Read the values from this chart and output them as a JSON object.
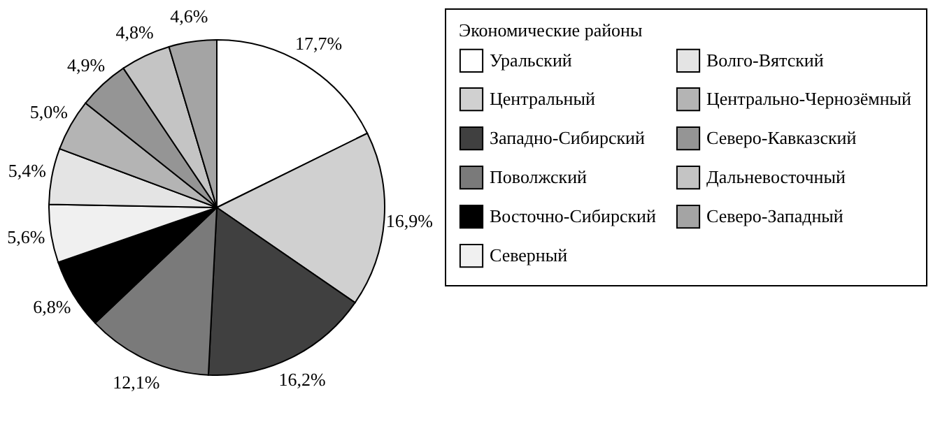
{
  "chart_data": {
    "type": "pie",
    "legend_title": "Экономические районы",
    "categories": [
      "Уральский",
      "Центральный",
      "Западно-Сибирский",
      "Поволжский",
      "Восточно-Сибирский",
      "Северный",
      "Волго-Вятский",
      "Центрально-Чернозёмный",
      "Северо-Кавказский",
      "Дальневосточный",
      "Северо-Западный"
    ],
    "values": [
      17.7,
      16.9,
      16.2,
      12.1,
      6.8,
      5.6,
      5.4,
      5.0,
      4.9,
      4.8,
      4.6
    ],
    "value_labels": [
      "17,7%",
      "16,9%",
      "16,2%",
      "12,1%",
      "6,8%",
      "5,6%",
      "5,4%",
      "5,0%",
      "4,9%",
      "4,8%",
      "4,6%"
    ],
    "colors": [
      "#ffffff",
      "#d0d0d0",
      "#404040",
      "#7a7a7a",
      "#000000",
      "#f0f0f0",
      "#e4e4e4",
      "#b4b4b4",
      "#959595",
      "#c4c4c4",
      "#a4a4a4"
    ],
    "legend": "right"
  }
}
